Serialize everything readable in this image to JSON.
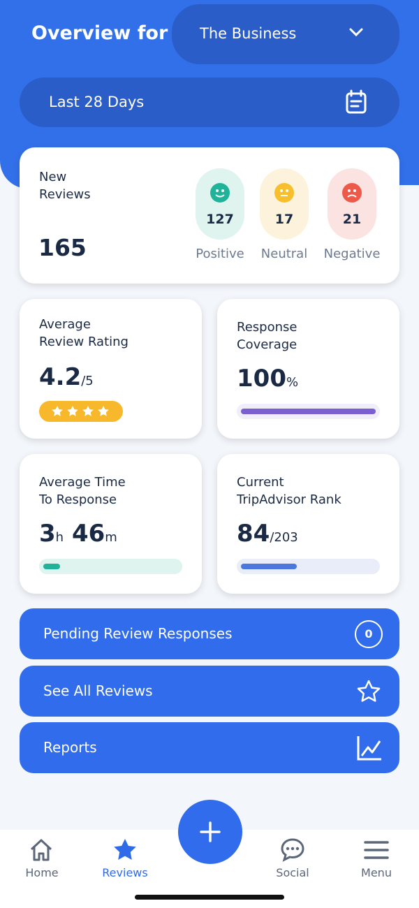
{
  "header": {
    "title": "Overview for",
    "business": "The Business",
    "period": "Last 28 Days"
  },
  "new_reviews": {
    "label": [
      "New",
      "Reviews"
    ],
    "total": 165,
    "sentiments": [
      {
        "count": 127,
        "label": "Positive"
      },
      {
        "count": 17,
        "label": "Neutral"
      },
      {
        "count": 21,
        "label": "Negative"
      }
    ]
  },
  "stats": {
    "rating": {
      "label": [
        "Average",
        "Review Rating"
      ],
      "value": 4.2,
      "suffix": "/5"
    },
    "coverage": {
      "label": [
        "Response",
        "Coverage"
      ],
      "value": 100,
      "suffix": "%"
    },
    "response_time": {
      "label": [
        "Average Time",
        "To Response"
      ],
      "hours": 3,
      "hours_unit": "h",
      "minutes": 46,
      "minutes_unit": "m"
    },
    "rank": {
      "label": [
        "Current",
        "TripAdvisor Rank"
      ],
      "value": 84,
      "suffix": "/203"
    }
  },
  "actions": [
    {
      "label": "Pending Review Responses",
      "badge": 0
    },
    {
      "label": "See All Reviews"
    },
    {
      "label": "Reports"
    }
  ],
  "nav": [
    "Home",
    "Reviews",
    "Social",
    "Menu"
  ]
}
